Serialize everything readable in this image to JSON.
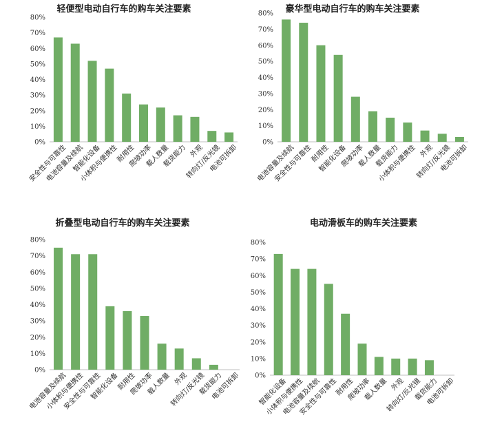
{
  "chart_data": [
    {
      "type": "bar",
      "title": "轻便型电动自行车的购车关注要素",
      "categories": [
        "安全性与可靠性",
        "电池容量及续航",
        "智能化设备",
        "小体积与便携性",
        "耐用性",
        "爬坡功率",
        "载人数量",
        "载货能力",
        "外观",
        "转向灯/反光镜",
        "电池可拆卸"
      ],
      "values": [
        67,
        63,
        52,
        47,
        31,
        24,
        22,
        17,
        16,
        7,
        6
      ],
      "ylim": [
        0,
        80
      ],
      "yticks": [
        "0%",
        "10%",
        "20%",
        "30%",
        "40%",
        "50%",
        "60%",
        "70%",
        "80%"
      ],
      "color": "#70ad65",
      "grid": false,
      "legend": "none"
    },
    {
      "type": "bar",
      "title": "豪华型电动自行车的购车关注要素",
      "categories": [
        "电池容量及续航",
        "安全性与可靠性",
        "耐用性",
        "智能化设备",
        "爬坡功率",
        "载人数量",
        "载货能力",
        "小体积与便携性",
        "外观",
        "转向灯/反光镜",
        "电池可拆卸"
      ],
      "values": [
        76,
        74,
        60,
        54,
        28,
        19,
        15,
        12,
        7,
        5,
        3
      ],
      "ylim": [
        0,
        80
      ],
      "yticks": [
        "0%",
        "10%",
        "20%",
        "30%",
        "40%",
        "50%",
        "60%",
        "70%",
        "80%"
      ],
      "color": "#70ad65",
      "grid": false,
      "legend": "none"
    },
    {
      "type": "bar",
      "title": "折叠型电动自行车的购车关注要素",
      "categories": [
        "电池容量及续航",
        "小体积与便携性",
        "安全性与可靠性",
        "智能化设备",
        "耐用性",
        "爬坡功率",
        "载人数量",
        "外观",
        "转向灯/反光镜",
        "载货能力",
        "电池可拆卸"
      ],
      "values": [
        75,
        71,
        71,
        39,
        36,
        33,
        16,
        13,
        7,
        3,
        0
      ],
      "ylim": [
        0,
        80
      ],
      "yticks": [
        "0%",
        "10%",
        "20%",
        "30%",
        "40%",
        "50%",
        "60%",
        "70%",
        "80%"
      ],
      "color": "#70ad65",
      "grid": false,
      "legend": "none"
    },
    {
      "type": "bar",
      "title": "电动滑板车的购车关注要素",
      "categories": [
        "智能化设备",
        "小体积与便携性",
        "电池容量及续航",
        "安全性与可靠性",
        "耐用性",
        "爬坡功率",
        "载人数量",
        "外观",
        "转向灯/反光镜",
        "载货能力",
        "电池可拆卸"
      ],
      "values": [
        73,
        64,
        64,
        55,
        37,
        19,
        11,
        10,
        10,
        9,
        0
      ],
      "ylim": [
        0,
        80
      ],
      "yticks": [
        "0%",
        "10%",
        "20%",
        "30%",
        "40%",
        "50%",
        "60%",
        "70%",
        "80%"
      ],
      "color": "#70ad65",
      "grid": false,
      "legend": "none"
    }
  ]
}
